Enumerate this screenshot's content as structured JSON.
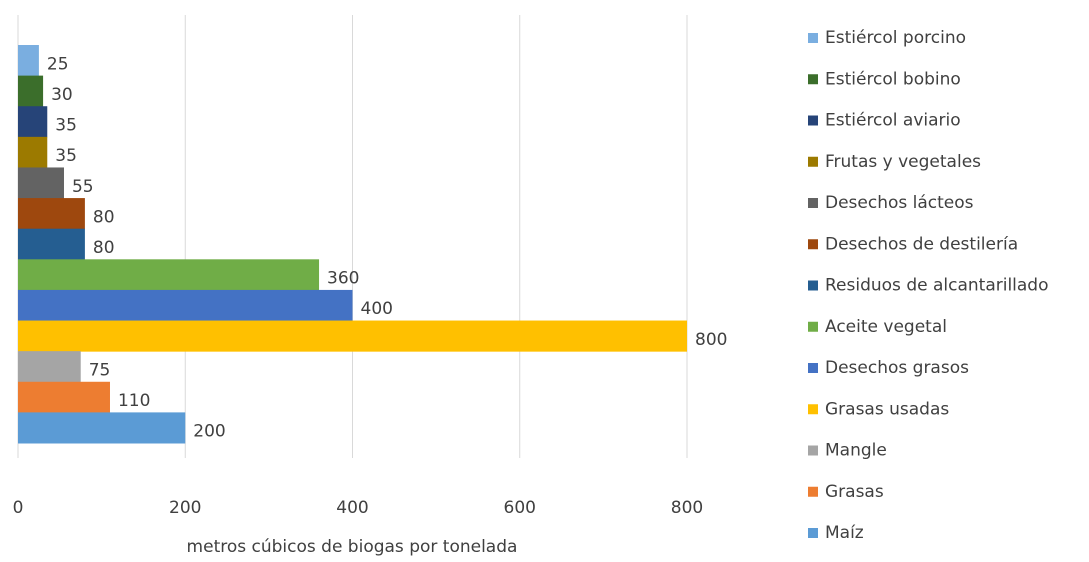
{
  "chart_data": {
    "type": "bar",
    "orientation": "horizontal",
    "xlabel": "metros cúbicos de biogas por tonelada",
    "xlim": [
      0,
      800
    ],
    "xticks": [
      0,
      200,
      400,
      600,
      800
    ],
    "grid": true,
    "legend": "right",
    "series": [
      {
        "name": "Estiércol porcino",
        "color": "#7aaee0",
        "values": [
          25
        ]
      },
      {
        "name": "Estiércol bobino",
        "color": "#3b6e2b",
        "values": [
          30
        ]
      },
      {
        "name": "Estiércol aviario",
        "color": "#264478",
        "values": [
          35
        ]
      },
      {
        "name": "Frutas y vegetales",
        "color": "#9c7a00",
        "values": [
          35
        ]
      },
      {
        "name": "Desechos lácteos",
        "color": "#636363",
        "values": [
          55
        ]
      },
      {
        "name": "Desechos de destilería",
        "color": "#9e480e",
        "values": [
          80
        ]
      },
      {
        "name": "Residuos de alcantarillado",
        "color": "#255e91",
        "values": [
          80
        ]
      },
      {
        "name": "Aceite vegetal",
        "color": "#70ad47",
        "values": [
          360
        ]
      },
      {
        "name": "Desechos grasos",
        "color": "#4472c4",
        "values": [
          400
        ]
      },
      {
        "name": "Grasas usadas",
        "color": "#ffc000",
        "values": [
          800
        ]
      },
      {
        "name": "Mangle",
        "color": "#a5a5a5",
        "values": [
          75
        ]
      },
      {
        "name": "Grasas",
        "color": "#ed7d31",
        "values": [
          110
        ]
      },
      {
        "name": "Maíz",
        "color": "#5b9bd5",
        "values": [
          200
        ]
      }
    ]
  }
}
